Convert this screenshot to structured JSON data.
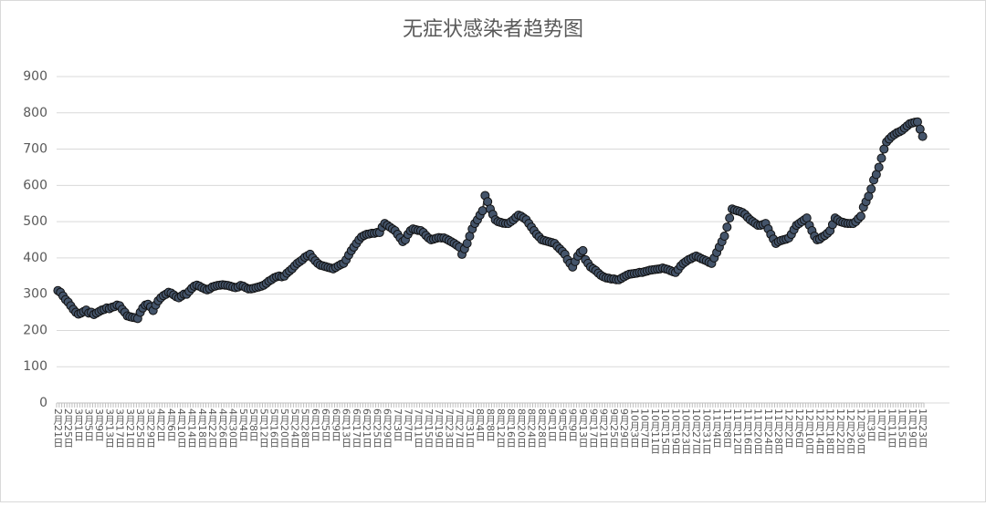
{
  "chart_data": {
    "type": "line",
    "title": "无症状感染者趋势图",
    "categories": [
      "2月21日",
      null,
      null,
      null,
      "2月25日",
      null,
      null,
      null,
      "3月1日",
      null,
      null,
      null,
      "3月5日",
      null,
      null,
      null,
      "3月9日",
      null,
      null,
      null,
      "3月13日",
      null,
      null,
      null,
      "3月17日",
      null,
      null,
      null,
      "3月21日",
      null,
      null,
      null,
      "3月25日",
      null,
      null,
      null,
      "3月29日",
      null,
      null,
      null,
      "4月2日",
      null,
      null,
      null,
      "4月6日",
      null,
      null,
      null,
      "4月10日",
      null,
      null,
      null,
      "4月14日",
      null,
      null,
      null,
      "4月18日",
      null,
      null,
      null,
      "4月22日",
      null,
      null,
      null,
      "4月26日",
      null,
      null,
      null,
      "4月30日",
      null,
      null,
      null,
      "5月4日",
      null,
      null,
      null,
      "5月8日",
      null,
      null,
      null,
      "5月12日",
      null,
      null,
      null,
      "5月16日",
      null,
      null,
      null,
      "5月20日",
      null,
      null,
      null,
      "5月24日",
      null,
      null,
      null,
      "5月28日",
      null,
      null,
      null,
      "6月1日",
      null,
      null,
      null,
      "6月5日",
      null,
      null,
      null,
      "6月9日",
      null,
      null,
      null,
      "6月13日",
      null,
      null,
      null,
      "6月17日",
      null,
      null,
      null,
      "6月21日",
      null,
      null,
      null,
      "6月25日",
      null,
      null,
      null,
      "6月29日",
      null,
      null,
      null,
      "7月3日",
      null,
      null,
      null,
      "7月7日",
      null,
      null,
      null,
      "7月11日",
      null,
      null,
      null,
      "7月15日",
      null,
      null,
      null,
      "7月19日",
      null,
      null,
      null,
      "7月23日",
      null,
      null,
      null,
      "7月27日",
      null,
      null,
      null,
      "7月31日",
      null,
      null,
      null,
      "8月4日",
      null,
      null,
      null,
      "8月8日",
      null,
      null,
      null,
      "8月12日",
      null,
      null,
      null,
      "8月16日",
      null,
      null,
      null,
      "8月20日",
      null,
      null,
      null,
      "8月24日",
      null,
      null,
      null,
      "8月28日",
      null,
      null,
      null,
      "9月1日",
      null,
      null,
      null,
      "9月5日",
      null,
      null,
      null,
      "9月9日",
      null,
      null,
      null,
      "9月13日",
      null,
      null,
      null,
      "9月17日",
      null,
      null,
      null,
      "9月21日",
      null,
      null,
      null,
      "9月25日",
      null,
      null,
      null,
      "9月29日",
      null,
      null,
      null,
      "10月3日",
      null,
      null,
      null,
      "10月7日",
      null,
      null,
      null,
      "10月11日",
      null,
      null,
      null,
      "10月15日",
      null,
      null,
      null,
      "10月19日",
      null,
      null,
      null,
      "10月23日",
      null,
      null,
      null,
      "10月27日",
      null,
      null,
      null,
      "10月31日",
      null,
      null,
      null,
      "11月4日",
      null,
      null,
      null,
      "11月8日",
      null,
      null,
      null,
      "11月12日",
      null,
      null,
      null,
      "11月16日",
      null,
      null,
      null,
      "11月20日",
      null,
      null,
      null,
      "11月24日",
      null,
      null,
      null,
      "11月28日",
      null,
      null,
      null,
      "12月2日",
      null,
      null,
      null,
      "12月6日",
      null,
      null,
      null,
      "12月10日",
      null,
      null,
      null,
      "12月14日",
      null,
      null,
      null,
      "12月18日",
      null,
      null,
      null,
      "12月22日",
      null,
      null,
      null,
      "12月26日",
      null,
      null,
      null,
      "12月30日",
      null,
      null,
      null,
      "1月3日",
      null,
      null,
      null,
      "1月7日",
      null,
      null,
      null,
      "1月11日",
      null,
      null,
      null,
      "1月15日",
      null,
      null,
      null,
      "1月19日",
      null,
      null,
      null,
      "1月23日"
    ],
    "values": [
      310,
      305,
      295,
      285,
      278,
      268,
      258,
      250,
      245,
      248,
      252,
      256,
      248,
      250,
      244,
      248,
      252,
      256,
      258,
      262,
      260,
      264,
      266,
      270,
      268,
      258,
      250,
      240,
      238,
      236,
      235,
      233,
      250,
      262,
      270,
      272,
      265,
      255,
      270,
      282,
      290,
      296,
      300,
      305,
      303,
      298,
      293,
      290,
      295,
      300,
      300,
      308,
      316,
      322,
      325,
      322,
      318,
      315,
      312,
      315,
      320,
      322,
      324,
      325,
      326,
      325,
      324,
      322,
      320,
      318,
      320,
      324,
      322,
      318,
      315,
      315,
      316,
      318,
      320,
      322,
      325,
      330,
      336,
      340,
      345,
      348,
      350,
      348,
      350,
      358,
      364,
      370,
      378,
      385,
      390,
      395,
      402,
      406,
      410,
      400,
      392,
      385,
      380,
      378,
      376,
      374,
      372,
      370,
      374,
      378,
      382,
      385,
      395,
      408,
      420,
      430,
      440,
      450,
      458,
      462,
      465,
      466,
      468,
      468,
      470,
      470,
      485,
      495,
      490,
      485,
      480,
      475,
      465,
      455,
      445,
      450,
      465,
      475,
      480,
      478,
      476,
      475,
      470,
      462,
      455,
      450,
      452,
      454,
      456,
      455,
      455,
      452,
      448,
      444,
      440,
      435,
      430,
      410,
      425,
      440,
      460,
      480,
      495,
      505,
      518,
      530,
      572,
      555,
      535,
      520,
      505,
      500,
      498,
      496,
      495,
      495,
      500,
      505,
      512,
      518,
      515,
      510,
      505,
      495,
      485,
      475,
      465,
      458,
      450,
      448,
      446,
      444,
      442,
      440,
      432,
      425,
      418,
      410,
      395,
      385,
      375,
      390,
      405,
      415,
      420,
      395,
      385,
      375,
      370,
      365,
      358,
      352,
      348,
      345,
      344,
      342,
      342,
      340,
      340,
      344,
      348,
      352,
      355,
      356,
      357,
      358,
      360,
      360,
      362,
      364,
      366,
      367,
      368,
      369,
      370,
      372,
      370,
      368,
      365,
      362,
      360,
      368,
      378,
      385,
      390,
      395,
      398,
      402,
      405,
      402,
      398,
      395,
      392,
      388,
      385,
      400,
      415,
      430,
      445,
      460,
      485,
      510,
      535,
      532,
      530,
      528,
      525,
      520,
      512,
      505,
      500,
      495,
      490,
      490,
      492,
      495,
      480,
      465,
      452,
      440,
      445,
      448,
      450,
      452,
      455,
      465,
      478,
      490,
      495,
      500,
      505,
      510,
      490,
      475,
      460,
      450,
      452,
      458,
      462,
      468,
      475,
      492,
      510,
      505,
      500,
      498,
      496,
      495,
      495,
      495,
      500,
      508,
      515,
      540,
      555,
      570,
      590,
      615,
      630,
      650,
      675,
      700,
      720,
      728,
      735,
      740,
      745,
      748,
      752,
      758,
      764,
      770,
      772,
      774,
      775,
      755,
      735
    ],
    "color": "#44546a",
    "line_color": "#404040",
    "ylim": [
      0,
      900
    ],
    "yticks": [
      0,
      100,
      200,
      300,
      400,
      500,
      600,
      700,
      800,
      900
    ],
    "grid": true
  }
}
